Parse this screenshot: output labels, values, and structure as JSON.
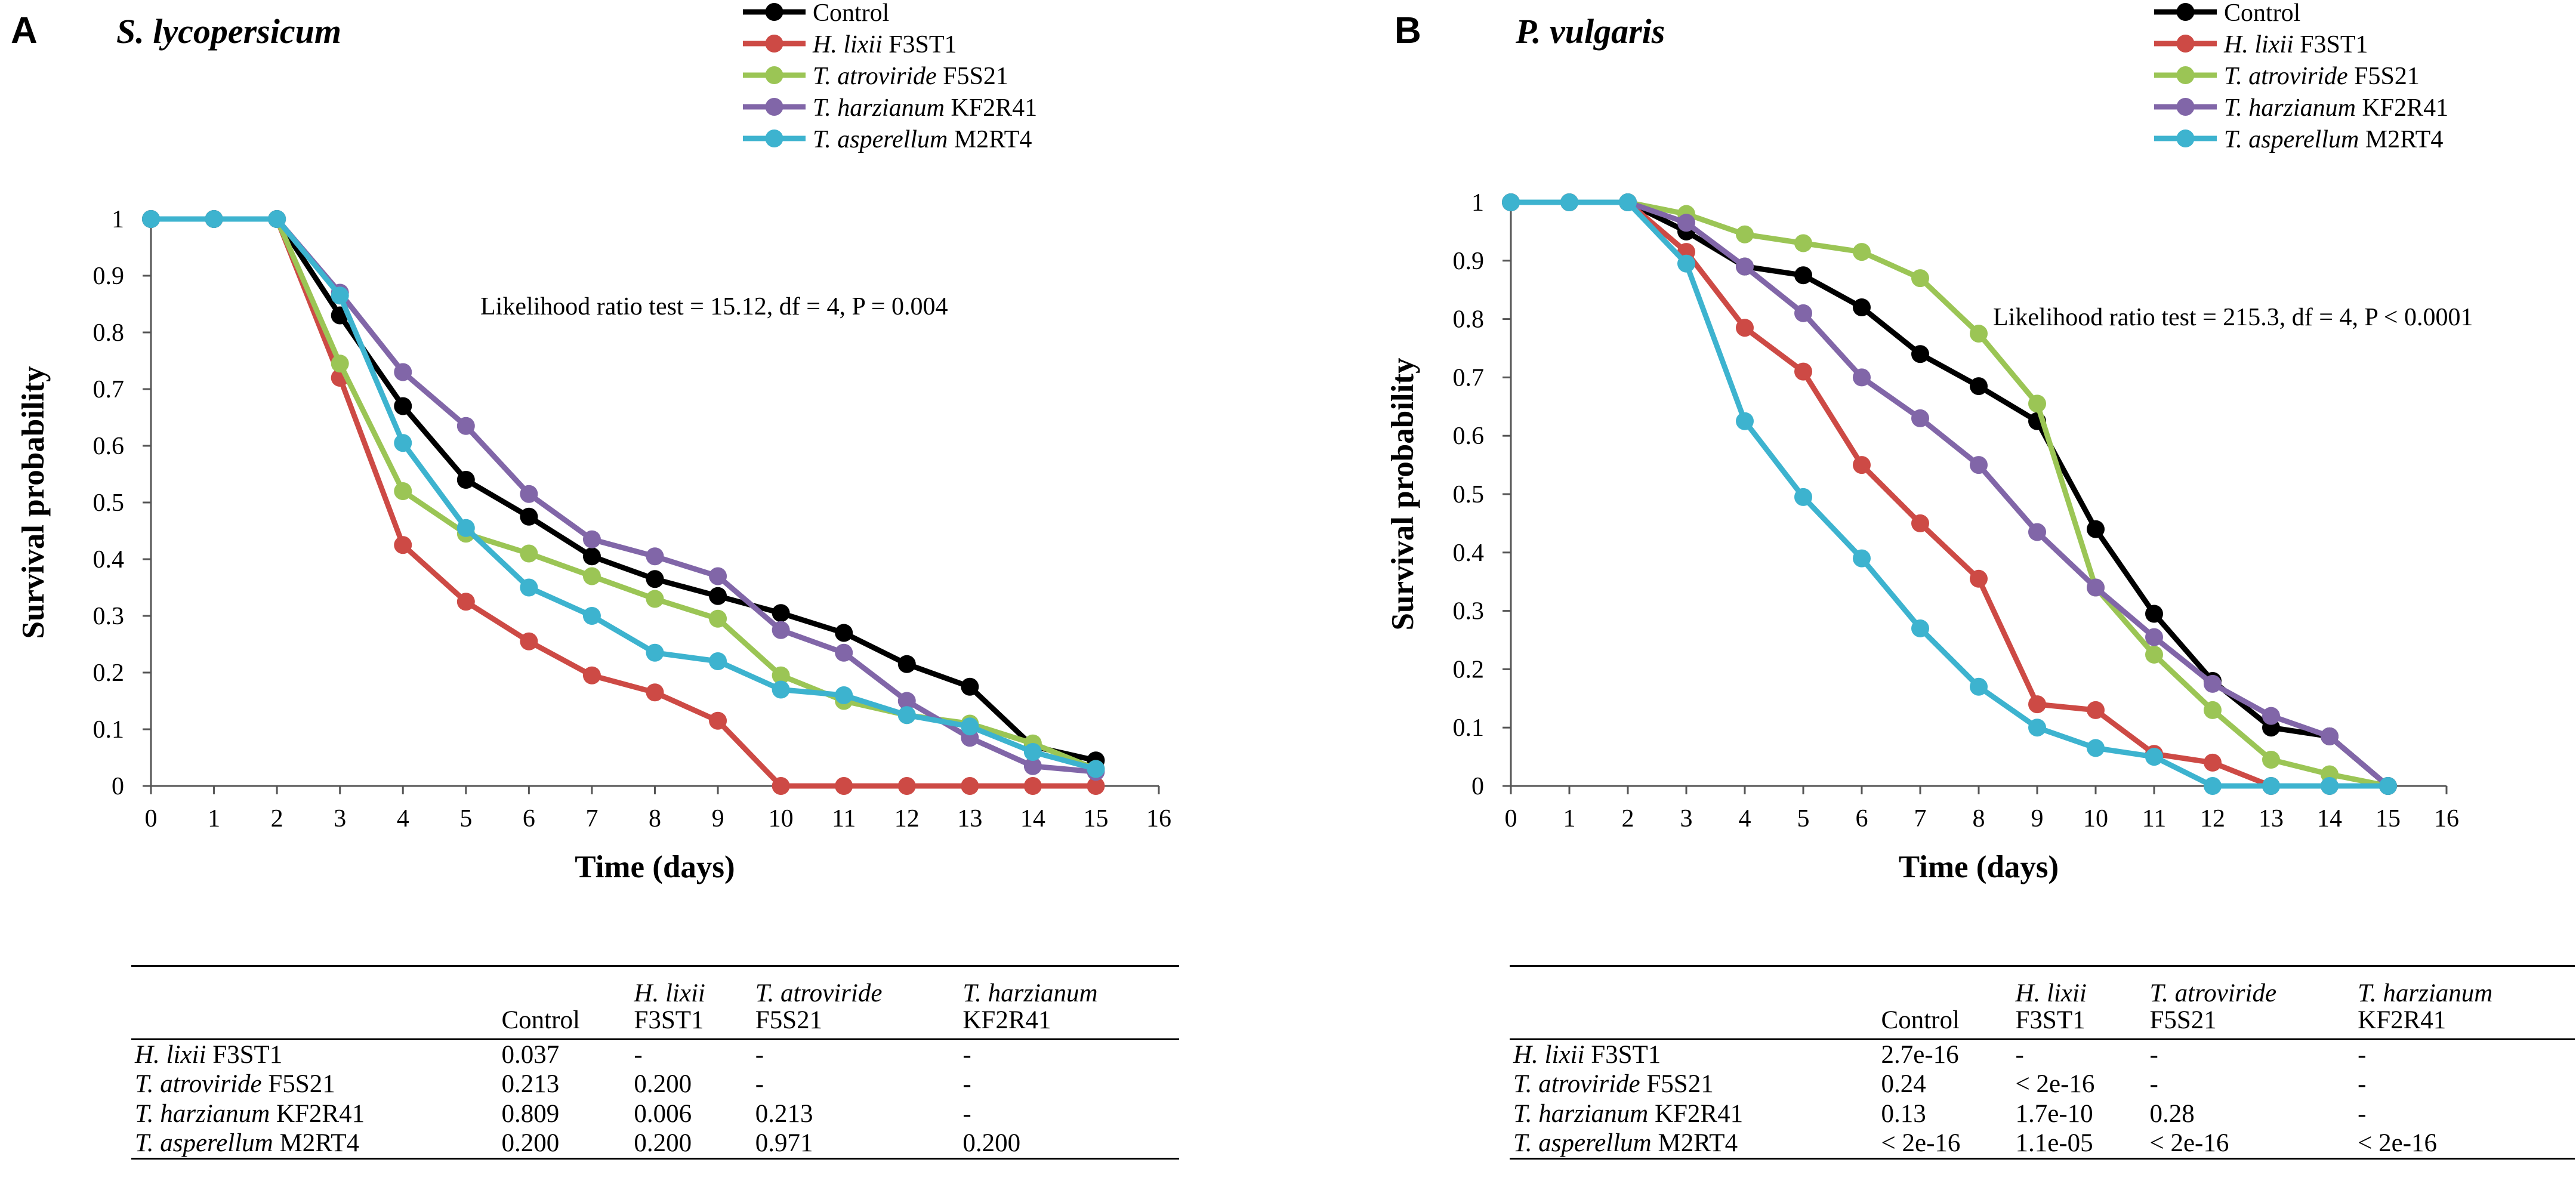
{
  "chart_data": [
    {
      "type": "line",
      "panel_label": "A",
      "title": "S. lycopersicum",
      "xlabel": "Time (days)",
      "ylabel": "Survival probability",
      "xlim": [
        0,
        16
      ],
      "ylim": [
        0,
        1
      ],
      "xticks": [
        0,
        1,
        2,
        3,
        4,
        5,
        6,
        7,
        8,
        9,
        10,
        11,
        12,
        13,
        14,
        15,
        16
      ],
      "yticks": [
        0,
        0.1,
        0.2,
        0.3,
        0.4,
        0.5,
        0.6,
        0.7,
        0.8,
        0.9,
        1
      ],
      "ytick_labels": [
        "0",
        "0.1",
        "0.2",
        "0.3",
        "0.4",
        "0.5",
        "0.6",
        "0.7",
        "0.8",
        "0.9",
        "1"
      ],
      "annotation": "Likelihood ratio test = 15.12, df = 4, P = 0.004",
      "x": [
        0,
        1,
        2,
        3,
        4,
        5,
        6,
        7,
        8,
        9,
        10,
        11,
        12,
        13,
        14,
        15
      ],
      "series": [
        {
          "name": "Control",
          "italic": "",
          "strain": "",
          "color": "#000000",
          "values": [
            1,
            1,
            1,
            0.83,
            0.67,
            0.54,
            0.475,
            0.405,
            0.365,
            0.335,
            0.305,
            0.27,
            0.215,
            0.175,
            0.07,
            0.045
          ]
        },
        {
          "name": "H. lixii F3ST1",
          "italic": "H. lixii",
          "strain": " F3ST1",
          "color": "#cd4a45",
          "values": [
            1,
            1,
            1,
            0.72,
            0.425,
            0.325,
            0.255,
            0.195,
            0.165,
            0.115,
            0,
            0,
            0,
            0,
            0,
            0
          ]
        },
        {
          "name": "T. atroviride F5S21",
          "italic": "T. atroviride",
          "strain": " F5S21",
          "color": "#9bc555",
          "values": [
            1,
            1,
            1,
            0.745,
            0.52,
            0.445,
            0.41,
            0.37,
            0.33,
            0.295,
            0.195,
            0.15,
            0.125,
            0.11,
            0.075,
            0.03
          ]
        },
        {
          "name": "T. harzianum KF2R41",
          "italic": "T. harzianum",
          "strain": " KF2R41",
          "color": "#8166a8",
          "values": [
            1,
            1,
            1,
            0.87,
            0.73,
            0.635,
            0.515,
            0.435,
            0.405,
            0.37,
            0.275,
            0.235,
            0.15,
            0.085,
            0.035,
            0.025
          ]
        },
        {
          "name": "T. asperellum M2RT4",
          "italic": "T. asperellum",
          "strain": " M2RT4",
          "color": "#3db3cf",
          "values": [
            1,
            1,
            1,
            0.865,
            0.605,
            0.455,
            0.35,
            0.3,
            0.235,
            0.22,
            0.17,
            0.16,
            0.125,
            0.105,
            0.06,
            0.03
          ]
        }
      ]
    },
    {
      "type": "line",
      "panel_label": "B",
      "title": "P. vulgaris",
      "xlabel": "Time (days)",
      "ylabel": "Survival probability",
      "xlim": [
        0,
        16
      ],
      "ylim": [
        0,
        1
      ],
      "xticks": [
        0,
        1,
        2,
        3,
        4,
        5,
        6,
        7,
        8,
        9,
        10,
        11,
        12,
        13,
        14,
        15,
        16
      ],
      "yticks": [
        0,
        0.1,
        0.2,
        0.3,
        0.4,
        0.5,
        0.6,
        0.7,
        0.8,
        0.9,
        1
      ],
      "ytick_labels": [
        "0",
        "0.1",
        "0.2",
        "0.3",
        "0.4",
        "0.5",
        "0.6",
        "0.7",
        "0.8",
        "0.9",
        "1"
      ],
      "annotation": "Likelihood ratio test = 215.3, df = 4, P < 0.0001",
      "x": [
        0,
        1,
        2,
        3,
        4,
        5,
        6,
        7,
        8,
        9,
        10,
        11,
        12,
        13,
        14,
        15
      ],
      "series": [
        {
          "name": "Control",
          "italic": "",
          "strain": "",
          "color": "#000000",
          "values": [
            1,
            1,
            1,
            0.95,
            0.89,
            0.875,
            0.82,
            0.74,
            0.685,
            0.625,
            0.44,
            0.295,
            0.18,
            0.1,
            0.085,
            0
          ]
        },
        {
          "name": "H. lixii F3ST1",
          "italic": "H. lixii",
          "strain": " F3ST1",
          "color": "#cd4a45",
          "values": [
            1,
            1,
            1,
            0.915,
            0.785,
            0.71,
            0.55,
            0.45,
            0.355,
            0.14,
            0.13,
            0.055,
            0.04,
            0,
            0,
            0
          ]
        },
        {
          "name": "T. atroviride F5S21",
          "italic": "T. atroviride",
          "strain": " F5S21",
          "color": "#9bc555",
          "values": [
            1,
            1,
            1,
            0.98,
            0.945,
            0.93,
            0.915,
            0.87,
            0.775,
            0.655,
            0.34,
            0.225,
            0.13,
            0.045,
            0.02,
            0
          ]
        },
        {
          "name": "T. harzianum KF2R41",
          "italic": "T. harzianum",
          "strain": " KF2R41",
          "color": "#8166a8",
          "values": [
            1,
            1,
            1,
            0.965,
            0.89,
            0.81,
            0.7,
            0.63,
            0.55,
            0.435,
            0.34,
            0.255,
            0.175,
            0.12,
            0.085,
            0
          ]
        },
        {
          "name": "T. asperellum M2RT4",
          "italic": "T. asperellum",
          "strain": " M2RT4",
          "color": "#3db3cf",
          "values": [
            1,
            1,
            1,
            0.895,
            0.625,
            0.495,
            0.39,
            0.27,
            0.17,
            0.1,
            0.065,
            0.05,
            0,
            0,
            0,
            0
          ]
        }
      ]
    }
  ],
  "tables": [
    {
      "columns": [
        {
          "line1": "",
          "line2": ""
        },
        {
          "line1": "Control",
          "line2": ""
        },
        {
          "line1": "H. lixii",
          "line2": "F3ST1"
        },
        {
          "line1": "T. atroviride",
          "line2": "F5S21"
        },
        {
          "line1": "T. harzianum",
          "line2": "KF2R41"
        }
      ],
      "rows": [
        {
          "italic": "H. lixii",
          "strain": " F3ST1",
          "cells": [
            "0.037",
            "-",
            "-",
            "-"
          ]
        },
        {
          "italic": "T. atroviride",
          "strain": " F5S21",
          "cells": [
            "0.213",
            "0.200",
            "-",
            "-"
          ]
        },
        {
          "italic": "T. harzianum",
          "strain": " KF2R41",
          "cells": [
            "0.809",
            "0.006",
            "0.213",
            "-"
          ]
        },
        {
          "italic": "T. asperellum",
          "strain": " M2RT4",
          "cells": [
            "0.200",
            "0.200",
            "0.971",
            "0.200"
          ]
        }
      ]
    },
    {
      "columns": [
        {
          "line1": "",
          "line2": ""
        },
        {
          "line1": "Control",
          "line2": ""
        },
        {
          "line1": "H. lixii",
          "line2": "F3ST1"
        },
        {
          "line1": "T. atroviride",
          "line2": "F5S21"
        },
        {
          "line1": "T. harzianum",
          "line2": "KF2R41"
        }
      ],
      "rows": [
        {
          "italic": "H. lixii",
          "strain": " F3ST1",
          "cells": [
            "2.7e-16",
            "-",
            "-",
            "-"
          ]
        },
        {
          "italic": "T. atroviride",
          "strain": " F5S21",
          "cells": [
            "0.24",
            "< 2e-16",
            "-",
            "-"
          ]
        },
        {
          "italic": "T. harzianum",
          "strain": " KF2R41",
          "cells": [
            "0.13",
            "1.7e-10",
            "0.28",
            "-"
          ]
        },
        {
          "italic": "T. asperellum",
          "strain": " M2RT4",
          "cells": [
            "< 2e-16",
            "1.1e-05",
            "< 2e-16",
            "< 2e-16"
          ]
        }
      ]
    }
  ]
}
